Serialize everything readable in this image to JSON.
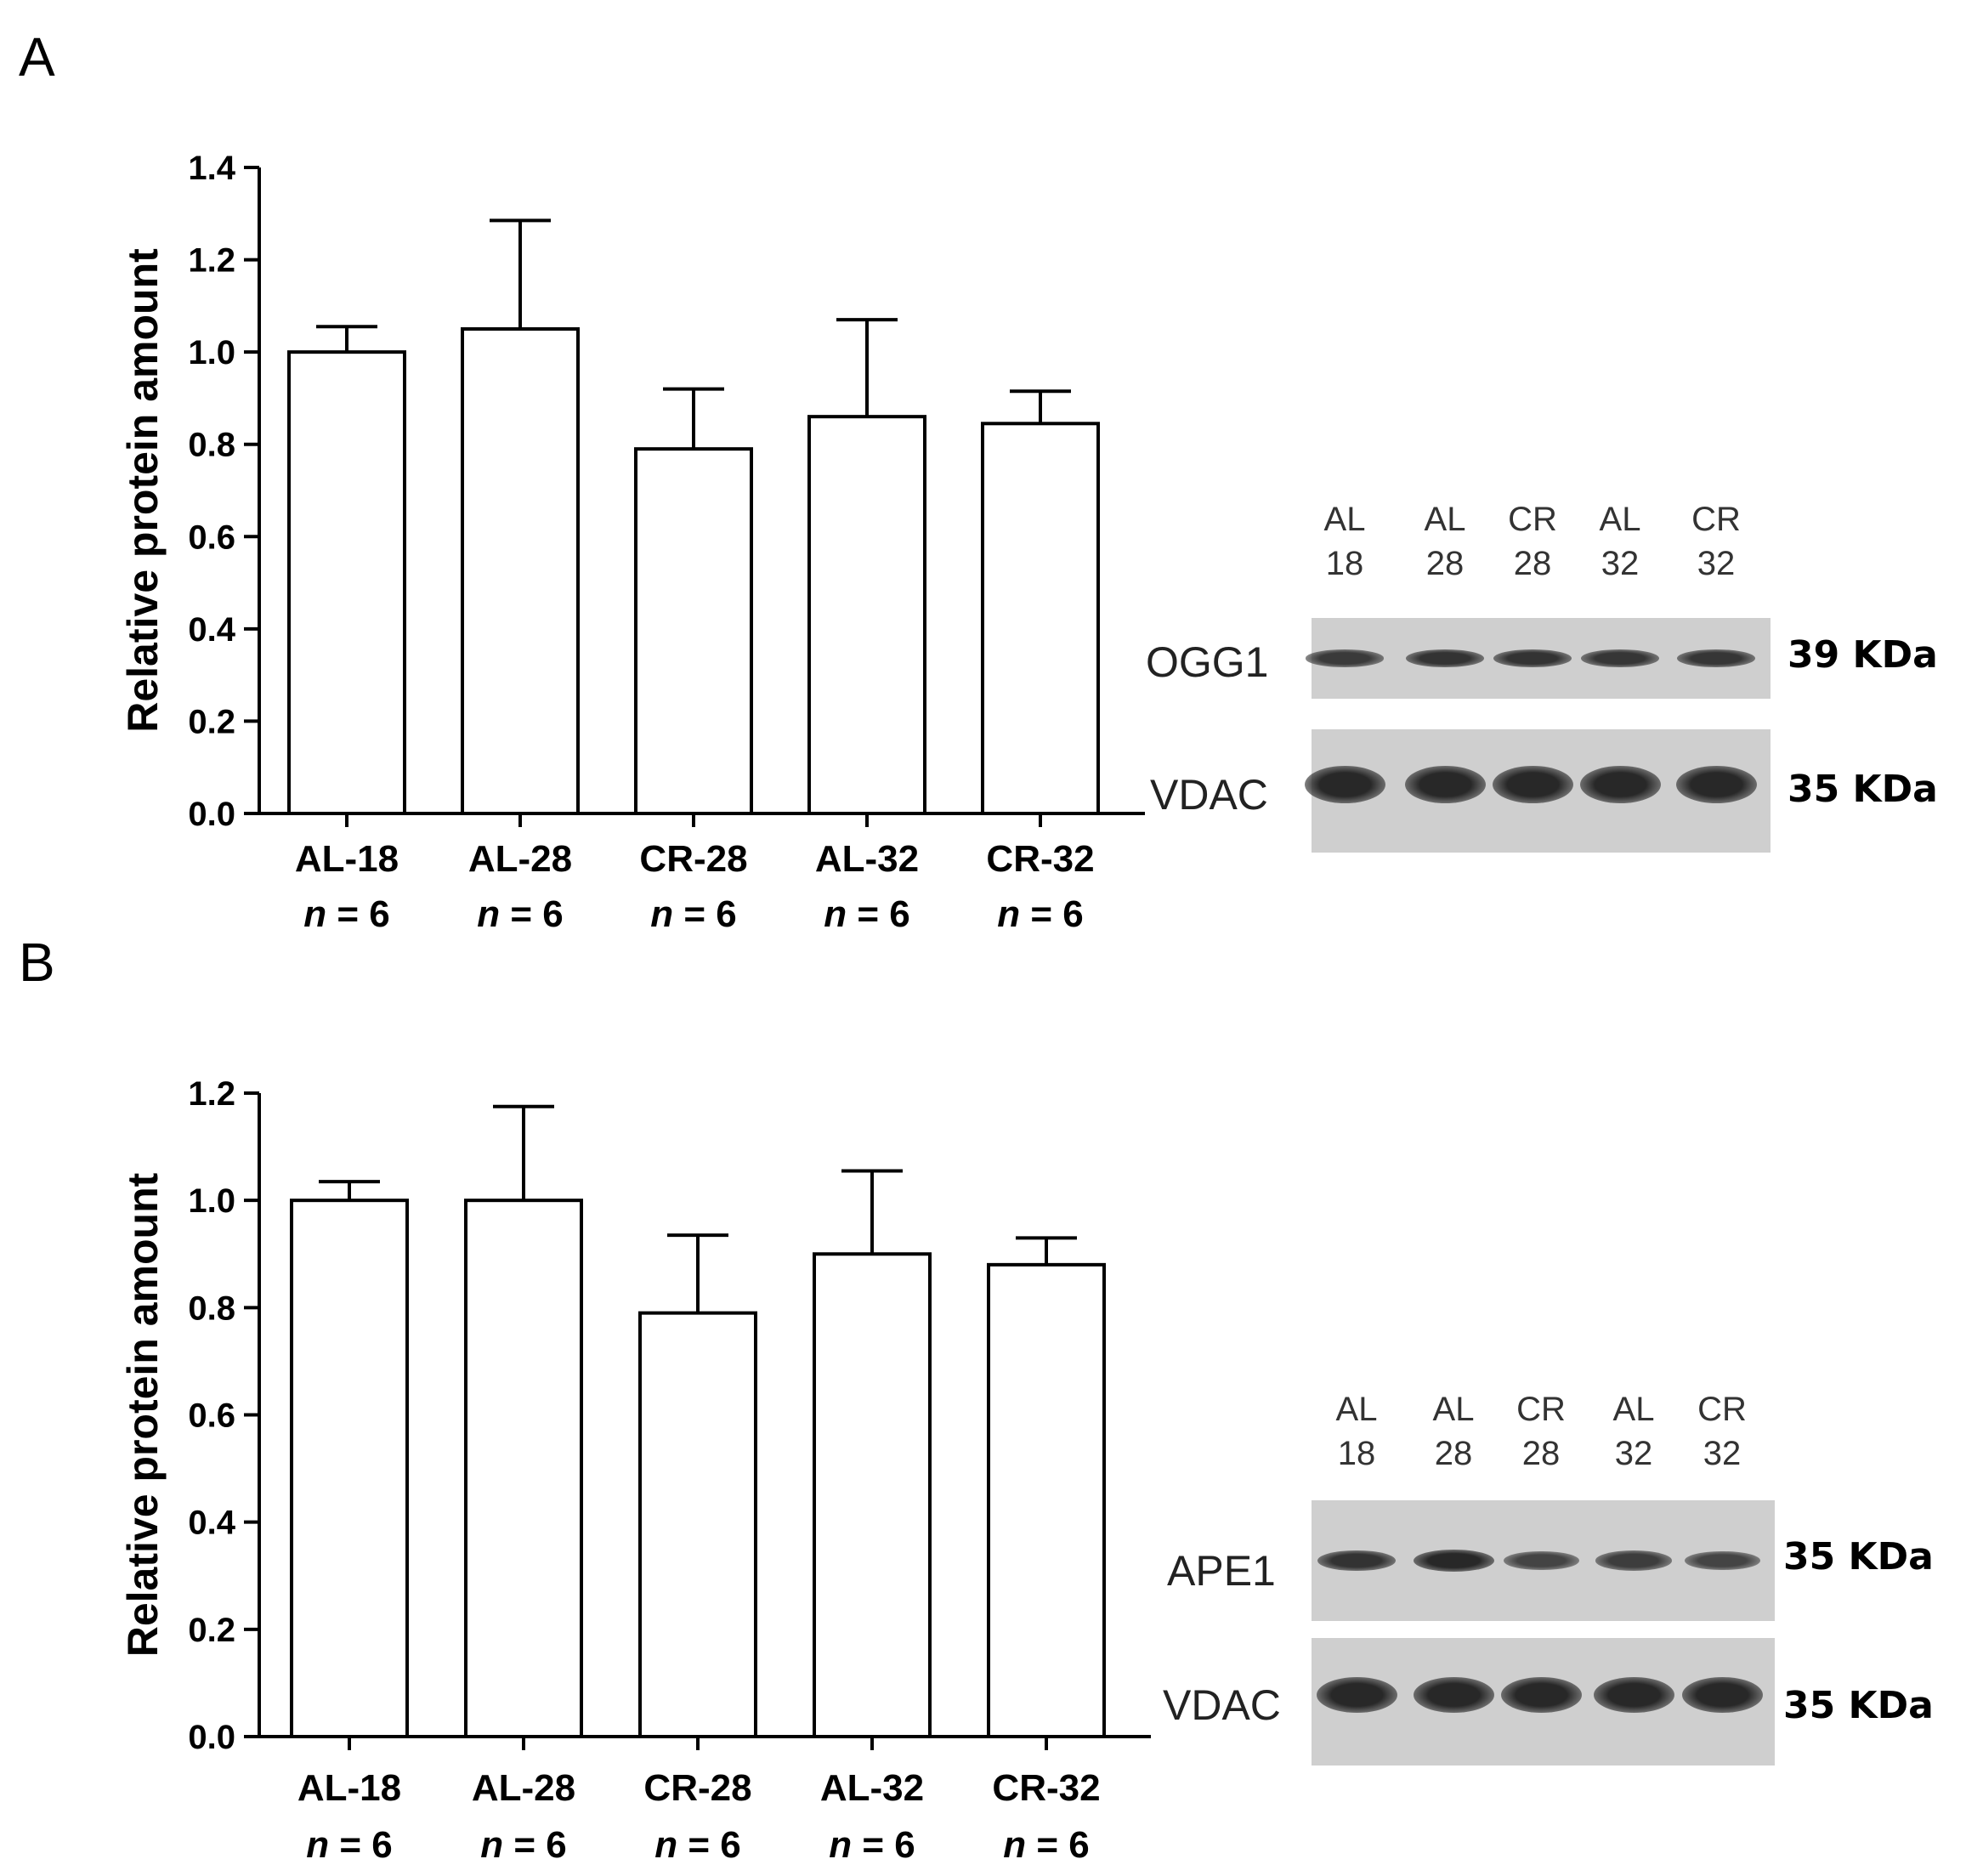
{
  "panels": [
    {
      "letter": "A",
      "chart_data": {
        "type": "bar",
        "categories": [
          "AL-18",
          "AL-28",
          "CR-28",
          "AL-32",
          "CR-32"
        ],
        "n_labels": [
          "n = 6",
          "n = 6",
          "n = 6",
          "n = 6",
          "n = 6"
        ],
        "values": [
          1.0,
          1.05,
          0.79,
          0.86,
          0.845
        ],
        "errors": [
          0.055,
          0.235,
          0.13,
          0.21,
          0.07
        ],
        "ylabel": "Relative protein amount",
        "ylim": [
          0,
          1.4
        ],
        "yticks": [
          "0.0",
          "0.2",
          "0.4",
          "0.6",
          "0.8",
          "1.0",
          "1.2",
          "1.4"
        ],
        "grid": false
      },
      "blot": {
        "lanes": [
          [
            "AL",
            "18"
          ],
          [
            "AL",
            "28"
          ],
          [
            "CR",
            "28"
          ],
          [
            "AL",
            "32"
          ],
          [
            "CR",
            "32"
          ]
        ],
        "rows": [
          {
            "protein": "OGG1",
            "size": "39 KDa",
            "intensities": [
              0.75,
              0.85,
              0.85,
              0.8,
              0.8
            ]
          },
          {
            "protein": "VDAC",
            "size": "35 KDa",
            "intensities": [
              1.0,
              1.0,
              1.0,
              1.0,
              1.0
            ]
          }
        ]
      }
    },
    {
      "letter": "B",
      "chart_data": {
        "type": "bar",
        "categories": [
          "AL-18",
          "AL-28",
          "CR-28",
          "AL-32",
          "CR-32"
        ],
        "n_labels": [
          "n = 6",
          "n = 6",
          "n = 6",
          "n = 6",
          "n = 6"
        ],
        "values": [
          1.0,
          1.0,
          0.79,
          0.9,
          0.88
        ],
        "errors": [
          0.035,
          0.175,
          0.145,
          0.155,
          0.05
        ],
        "ylabel": "Relative protein amount",
        "ylim": [
          0,
          1.2
        ],
        "yticks": [
          "0.0",
          "0.2",
          "0.4",
          "0.6",
          "0.8",
          "1.0",
          "1.2"
        ],
        "grid": false
      },
      "blot": {
        "lanes": [
          [
            "AL",
            "18"
          ],
          [
            "AL",
            "28"
          ],
          [
            "CR",
            "28"
          ],
          [
            "AL",
            "32"
          ],
          [
            "CR",
            "32"
          ]
        ],
        "rows": [
          {
            "protein": "APE1",
            "size": "35 KDa",
            "intensities": [
              0.85,
              1.0,
              0.6,
              0.7,
              0.6
            ]
          },
          {
            "protein": "VDAC",
            "size": "35 KDa",
            "intensities": [
              1.0,
              1.0,
              1.0,
              1.0,
              1.0
            ]
          }
        ]
      }
    }
  ]
}
